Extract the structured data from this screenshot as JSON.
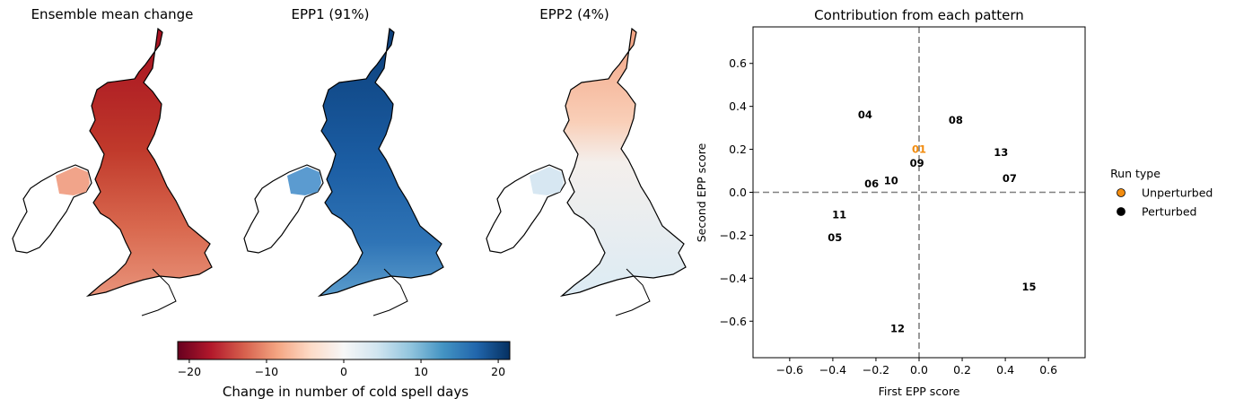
{
  "maps": [
    {
      "title": "Ensemble mean change"
    },
    {
      "title": "EPP1 (91%)"
    },
    {
      "title": "EPP2 (4%)"
    }
  ],
  "colorbar": {
    "label": "Change in number of cold spell days",
    "range": [
      -21.5,
      21.5
    ],
    "ticks": [
      -20,
      -10,
      0,
      10,
      20
    ],
    "tick_labels": [
      "−20",
      "−10",
      "0",
      "10",
      "20"
    ],
    "colormap": [
      "#67001f",
      "#b2182b",
      "#d6604d",
      "#f4a582",
      "#fddbc7",
      "#f7f7f7",
      "#d1e5f0",
      "#92c5de",
      "#4393c3",
      "#2166ac",
      "#053061"
    ]
  },
  "chart_data": {
    "type": "scatter",
    "title": "Contribution from each pattern",
    "xlabel": "First EPP score",
    "ylabel": "Second EPP score",
    "xlim": [
      -0.77,
      0.77
    ],
    "ylim": [
      -0.77,
      0.77
    ],
    "xticks": [
      -0.6,
      -0.4,
      -0.2,
      0.0,
      0.2,
      0.4,
      0.6
    ],
    "xtick_labels": [
      "−0.6",
      "−0.4",
      "−0.2",
      "0.0",
      "0.2",
      "0.4",
      "0.6"
    ],
    "yticks": [
      -0.6,
      -0.4,
      -0.2,
      0.0,
      0.2,
      0.4,
      0.6
    ],
    "ytick_labels": [
      "−0.6",
      "−0.4",
      "−0.2",
      "0.0",
      "0.2",
      "0.4",
      "0.6"
    ],
    "reference_lines": {
      "x": 0.0,
      "y": 0.0,
      "style": "dashed",
      "color": "#808080"
    },
    "grid": false,
    "legend": {
      "title": "Run type",
      "placement": "right, outside",
      "entries": [
        {
          "label": "Unperturbed",
          "color": "#f28c0f"
        },
        {
          "label": "Perturbed",
          "color": "#000000"
        }
      ]
    },
    "points": [
      {
        "label": "01",
        "x": 0.0,
        "y": 0.2,
        "type": "Unperturbed"
      },
      {
        "label": "04",
        "x": -0.25,
        "y": 0.36,
        "type": "Perturbed"
      },
      {
        "label": "05",
        "x": -0.39,
        "y": -0.21,
        "type": "Perturbed"
      },
      {
        "label": "06",
        "x": -0.22,
        "y": 0.04,
        "type": "Perturbed"
      },
      {
        "label": "07",
        "x": 0.42,
        "y": 0.065,
        "type": "Perturbed"
      },
      {
        "label": "08",
        "x": 0.17,
        "y": 0.335,
        "type": "Perturbed"
      },
      {
        "label": "09",
        "x": -0.01,
        "y": 0.135,
        "type": "Perturbed"
      },
      {
        "label": "10",
        "x": -0.13,
        "y": 0.055,
        "type": "Perturbed"
      },
      {
        "label": "11",
        "x": -0.37,
        "y": -0.105,
        "type": "Perturbed"
      },
      {
        "label": "12",
        "x": -0.1,
        "y": -0.635,
        "type": "Perturbed"
      },
      {
        "label": "13",
        "x": 0.38,
        "y": 0.185,
        "type": "Perturbed"
      },
      {
        "label": "15",
        "x": 0.51,
        "y": -0.44,
        "type": "Perturbed"
      }
    ]
  }
}
